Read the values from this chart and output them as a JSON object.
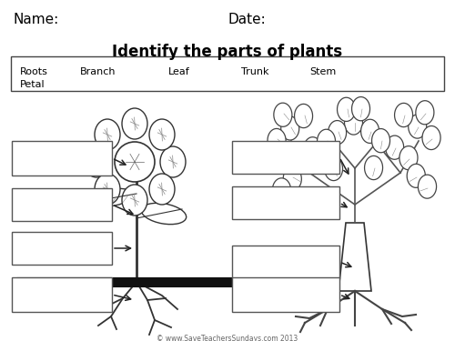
{
  "title": "Identify the parts of plants",
  "name_label": "Name:",
  "date_label": "Date:",
  "word_bank": [
    "Roots",
    "Branch",
    "Leaf",
    "Trunk",
    "Stem",
    "Petal"
  ],
  "copyright": "© www.SaveTeachersSundays.com 2013",
  "bg_color": "#ffffff",
  "text_color": "#000000",
  "figsize": [
    5.0,
    3.75
  ],
  "dpi": 100
}
